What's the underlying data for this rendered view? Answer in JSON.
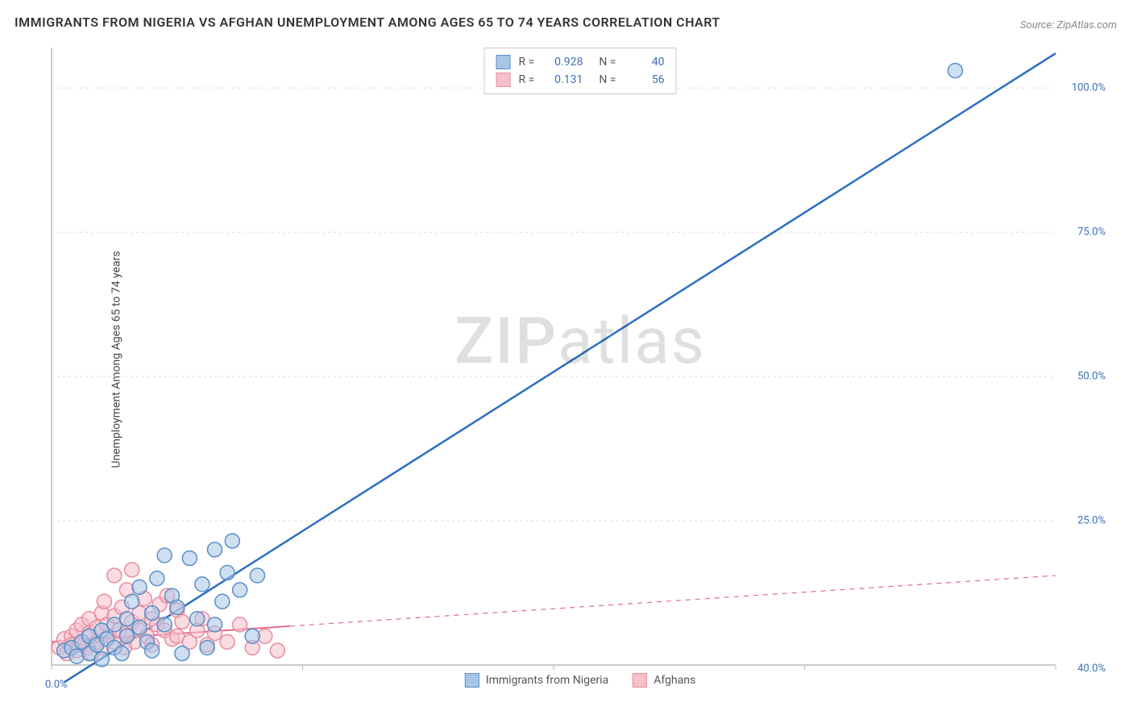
{
  "title": "IMMIGRANTS FROM NIGERIA VS AFGHAN UNEMPLOYMENT AMONG AGES 65 TO 74 YEARS CORRELATION CHART",
  "source": "Source: ZipAtlas.com",
  "y_axis_label": "Unemployment Among Ages 65 to 74 years",
  "watermark": {
    "zip": "ZIP",
    "atlas": "atlas"
  },
  "chart": {
    "type": "scatter",
    "background_color": "#ffffff",
    "grid_color": "#dddddd",
    "axis_color": "#bbbbbb",
    "xlim": [
      0,
      40
    ],
    "ylim": [
      0,
      107
    ],
    "x_ticks": [
      0,
      10,
      20,
      30,
      40
    ],
    "y_grid": [
      25,
      50,
      75,
      100
    ],
    "y_tick_labels": [
      "25.0%",
      "50.0%",
      "75.0%",
      "100.0%"
    ],
    "x_origin_label": "0.0%",
    "x_max_label": "40.0%",
    "marker_radius": 9,
    "marker_stroke_width": 1.5,
    "line_width_solid": 2.5,
    "line_width_thin": 2,
    "series": [
      {
        "key": "nigeria",
        "label": "Immigrants from Nigeria",
        "r_value": "0.928",
        "n_value": "40",
        "fill_color": "#a8c5e8",
        "stroke_color": "#5a8fc7",
        "line_color": "#2c6fc2",
        "trend": {
          "x1": 0.5,
          "y1": -3,
          "x2": 40,
          "y2": 106,
          "dash": null,
          "solid_until_x": 40
        },
        "points": [
          [
            0.5,
            2.5
          ],
          [
            0.8,
            3
          ],
          [
            1,
            1.5
          ],
          [
            1.2,
            4
          ],
          [
            1.5,
            2
          ],
          [
            1.5,
            5
          ],
          [
            1.8,
            3.5
          ],
          [
            2,
            1
          ],
          [
            2,
            6
          ],
          [
            2.2,
            4.5
          ],
          [
            2.5,
            7
          ],
          [
            2.5,
            3
          ],
          [
            2.8,
            2
          ],
          [
            3,
            8
          ],
          [
            3,
            5
          ],
          [
            3.2,
            11
          ],
          [
            3.5,
            6.5
          ],
          [
            3.5,
            13.5
          ],
          [
            3.8,
            4
          ],
          [
            4,
            9
          ],
          [
            4.2,
            15
          ],
          [
            4.5,
            7
          ],
          [
            4.5,
            19
          ],
          [
            4.8,
            12
          ],
          [
            5,
            10
          ],
          [
            5.5,
            18.5
          ],
          [
            5.8,
            8
          ],
          [
            6,
            14
          ],
          [
            6.5,
            20
          ],
          [
            6.8,
            11
          ],
          [
            7,
            16
          ],
          [
            7.2,
            21.5
          ],
          [
            7.5,
            13
          ],
          [
            8.2,
            15.5
          ],
          [
            5.2,
            2
          ],
          [
            6.2,
            3
          ],
          [
            8,
            5
          ],
          [
            4,
            2.5
          ],
          [
            6.5,
            7
          ],
          [
            36,
            103
          ]
        ]
      },
      {
        "key": "afghans",
        "label": "Afghans",
        "r_value": "0.131",
        "n_value": "56",
        "fill_color": "#f5c0cb",
        "stroke_color": "#e88ba0",
        "line_color": "#e56b87",
        "trend": {
          "x1": 0,
          "y1": 4,
          "x2": 40,
          "y2": 15.5,
          "dash": "6,6",
          "solid_until_x": 9.5
        },
        "points": [
          [
            0.3,
            3
          ],
          [
            0.5,
            4.5
          ],
          [
            0.6,
            2
          ],
          [
            0.8,
            5
          ],
          [
            0.8,
            3.5
          ],
          [
            1,
            6
          ],
          [
            1,
            2.5
          ],
          [
            1.2,
            7
          ],
          [
            1.2,
            4
          ],
          [
            1.4,
            3
          ],
          [
            1.5,
            8
          ],
          [
            1.5,
            5.5
          ],
          [
            1.6,
            2
          ],
          [
            1.8,
            6.5
          ],
          [
            1.8,
            4
          ],
          [
            2,
            9
          ],
          [
            2,
            3
          ],
          [
            2.1,
            11
          ],
          [
            2.2,
            7
          ],
          [
            2.3,
            5
          ],
          [
            2.5,
            8.5
          ],
          [
            2.5,
            4
          ],
          [
            2.5,
            15.5
          ],
          [
            2.7,
            6
          ],
          [
            2.8,
            10
          ],
          [
            3,
            5.5
          ],
          [
            3,
            13
          ],
          [
            3.2,
            7.5
          ],
          [
            3.3,
            4
          ],
          [
            3.5,
            9
          ],
          [
            3.5,
            6
          ],
          [
            3.7,
            11.5
          ],
          [
            3.8,
            5
          ],
          [
            4,
            8
          ],
          [
            4,
            3.5
          ],
          [
            4.2,
            7
          ],
          [
            4.3,
            10.5
          ],
          [
            4.5,
            6
          ],
          [
            4.8,
            4.5
          ],
          [
            5,
            9.5
          ],
          [
            5,
            5
          ],
          [
            5.2,
            7.5
          ],
          [
            5.5,
            4
          ],
          [
            5.8,
            6
          ],
          [
            6,
            8
          ],
          [
            6.2,
            3.5
          ],
          [
            6.5,
            5.5
          ],
          [
            7,
            4
          ],
          [
            7.5,
            7
          ],
          [
            8,
            3
          ],
          [
            8.5,
            5
          ],
          [
            9,
            2.5
          ],
          [
            3.2,
            16.5
          ],
          [
            2.9,
            3
          ],
          [
            4.6,
            12
          ],
          [
            1.1,
            3.5
          ]
        ]
      }
    ]
  },
  "legend_labels": {
    "R": "R =",
    "N": "N ="
  }
}
